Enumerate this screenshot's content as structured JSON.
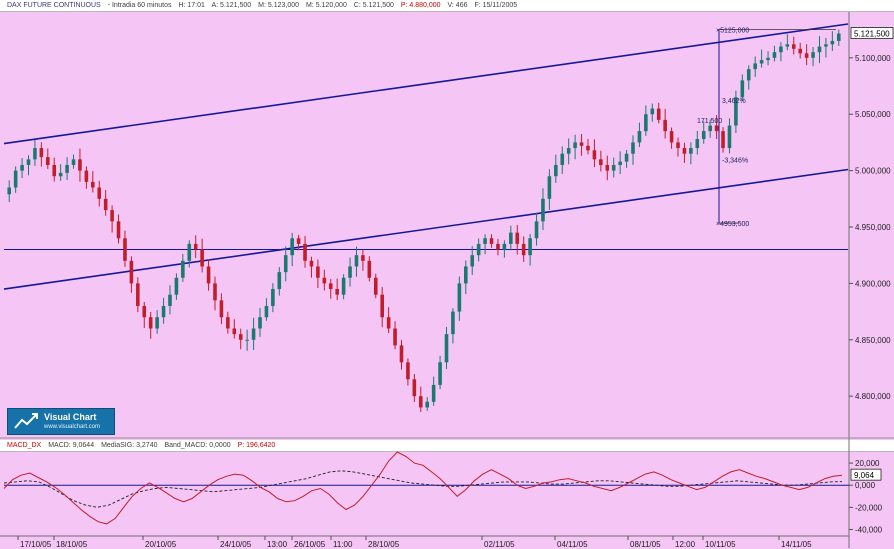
{
  "header_top": {
    "name": "DAX FUTURE CONTINUOUS",
    "fields": [
      "- Intradia 60 minutos",
      "H: 17:01",
      "A: 5.121,500",
      "M: 5.123,000",
      "M: 5.120,000",
      "C: 5.121,500"
    ],
    "change": "P: 4.880,000",
    "tail": [
      "V: 466",
      "F: 15/11/2005"
    ]
  },
  "header_bottom": {
    "name": "MACD_DX",
    "fields": [
      "MACD: 9,0644",
      "MediaSIG: 3,2740",
      "Band_MACD: 0,0000"
    ],
    "change": "P: 196,6420"
  },
  "badge": {
    "title": "Visual Chart",
    "url": "www.visualchart.com"
  },
  "colors": {
    "background": "#f5c6f5",
    "up_candle": "#1a7a70",
    "down_candle": "#c01e2a",
    "trendline": "#16169a",
    "macd": "#c01e2a",
    "signal": "#202020"
  },
  "chart_data": [
    {
      "type": "candlestick",
      "title": "DAX FUTURE CONTINUOUS",
      "x_tick_labels": [
        "17/10/05",
        "18/10/05",
        "20/10/05",
        "24/10/05",
        "13:00",
        "26/10/05",
        "11:00",
        "28/10/05",
        "02/11/05",
        "04/11/05",
        "08/11/05",
        "12:00",
        "10/11/05",
        "14/11/05"
      ],
      "y_tick_labels": [
        "5.100,000",
        "5.050,000",
        "5.000,000",
        "4.950,000",
        "4.900,000",
        "4.850,000",
        "4.800,000"
      ],
      "ylim": [
        4770,
        5130
      ],
      "last_price_label": "5.121,500",
      "horizontal_line": 4930,
      "channel_upper": {
        "from": 5024,
        "to": 5130
      },
      "channel_lower": {
        "from": 4895,
        "to": 5001
      },
      "measurement": {
        "high_label": "5125,000",
        "low_label": "4953,500",
        "pct_labels": [
          "3,462%",
          "-3,346%"
        ],
        "mid_label": "171,500"
      },
      "close_series": [
        4985,
        5000,
        5005,
        5010,
        5020,
        5012,
        5005,
        4995,
        4998,
        5005,
        5010,
        5000,
        4990,
        4985,
        4975,
        4965,
        4955,
        4940,
        4920,
        4900,
        4880,
        4870,
        4860,
        4870,
        4880,
        4890,
        4905,
        4920,
        4935,
        4930,
        4915,
        4900,
        4885,
        4870,
        4860,
        4855,
        4850,
        4850,
        4860,
        4870,
        4880,
        4895,
        4910,
        4925,
        4940,
        4935,
        4920,
        4915,
        4905,
        4900,
        4895,
        4890,
        4905,
        4915,
        4925,
        4920,
        4905,
        4890,
        4870,
        4860,
        4845,
        4830,
        4815,
        4800,
        4790,
        4795,
        4810,
        4830,
        4855,
        4875,
        4900,
        4915,
        4925,
        4935,
        4940,
        4935,
        4930,
        4935,
        4945,
        4935,
        4925,
        4940,
        4955,
        4975,
        4995,
        5005,
        5015,
        5020,
        5025,
        5022,
        5018,
        5010,
        5005,
        5000,
        5005,
        5008,
        5015,
        5025,
        5035,
        5050,
        5055,
        5045,
        5035,
        5025,
        5020,
        5015,
        5020,
        5028,
        5035,
        5040,
        5035,
        5020,
        5040,
        5065,
        5080,
        5090,
        5095,
        5098,
        5100,
        5105,
        5110,
        5112,
        5108,
        5104,
        5100,
        5105,
        5110,
        5112,
        5115,
        5121.5
      ]
    },
    {
      "type": "line",
      "title": "MACD_DX",
      "y_tick_labels": [
        "20,000",
        "0,000",
        "-20,000",
        "-40,000"
      ],
      "ylim": [
        -45000,
        30000
      ],
      "last_value_label": "9,064",
      "series": [
        {
          "name": "MACD",
          "values": [
            -3000,
            5000,
            9000,
            11000,
            7000,
            3000,
            -2000,
            -8000,
            -15000,
            -22000,
            -28000,
            -33000,
            -35000,
            -30000,
            -20000,
            -10000,
            -3000,
            2000,
            -2000,
            -7000,
            -12000,
            -15000,
            -12000,
            -6000,
            0,
            5000,
            8000,
            10000,
            9000,
            4000,
            -2000,
            -6000,
            -12000,
            -15000,
            -14000,
            -10000,
            -5000,
            -3000,
            -8000,
            -16000,
            -22000,
            -18000,
            -10000,
            0,
            10000,
            22000,
            30000,
            26000,
            20000,
            18000,
            12000,
            6000,
            -2000,
            -10000,
            -4000,
            4000,
            10000,
            14000,
            10000,
            6000,
            0,
            -3000,
            -1000,
            2000,
            3000,
            5000,
            6000,
            4000,
            2000,
            -1000,
            -3000,
            -5000,
            -2000,
            2000,
            6000,
            10000,
            12000,
            9000,
            5000,
            2000,
            -1000,
            -4000,
            -2000,
            3000,
            8000,
            12000,
            14000,
            11000,
            8000,
            6000,
            3000,
            0,
            -2000,
            -4000,
            -2000,
            2000,
            6000,
            8000,
            9064
          ]
        },
        {
          "name": "MediaSIG",
          "values": [
            2000,
            3000,
            4000,
            3000,
            -2000,
            -8000,
            -14000,
            -18000,
            -20000,
            -18000,
            -13000,
            -8000,
            -5000,
            -3000,
            -2000,
            -3000,
            -4000,
            -5000,
            -6000,
            -5000,
            -4000,
            -3000,
            -2000,
            0,
            2000,
            4000,
            6000,
            9000,
            12000,
            13000,
            12000,
            10000,
            8000,
            6000,
            4000,
            2000,
            1000,
            0,
            -1000,
            -1000,
            0,
            1000,
            2000,
            3000,
            3000,
            3000,
            2000,
            1000,
            1000,
            2000,
            3000,
            4000,
            4000,
            3000,
            2000,
            1000,
            0,
            -1000,
            -1000,
            0,
            1000,
            2000,
            3000,
            4000,
            3000,
            2000,
            1000,
            0,
            0,
            1000,
            2000,
            3000,
            3274
          ]
        }
      ]
    }
  ]
}
